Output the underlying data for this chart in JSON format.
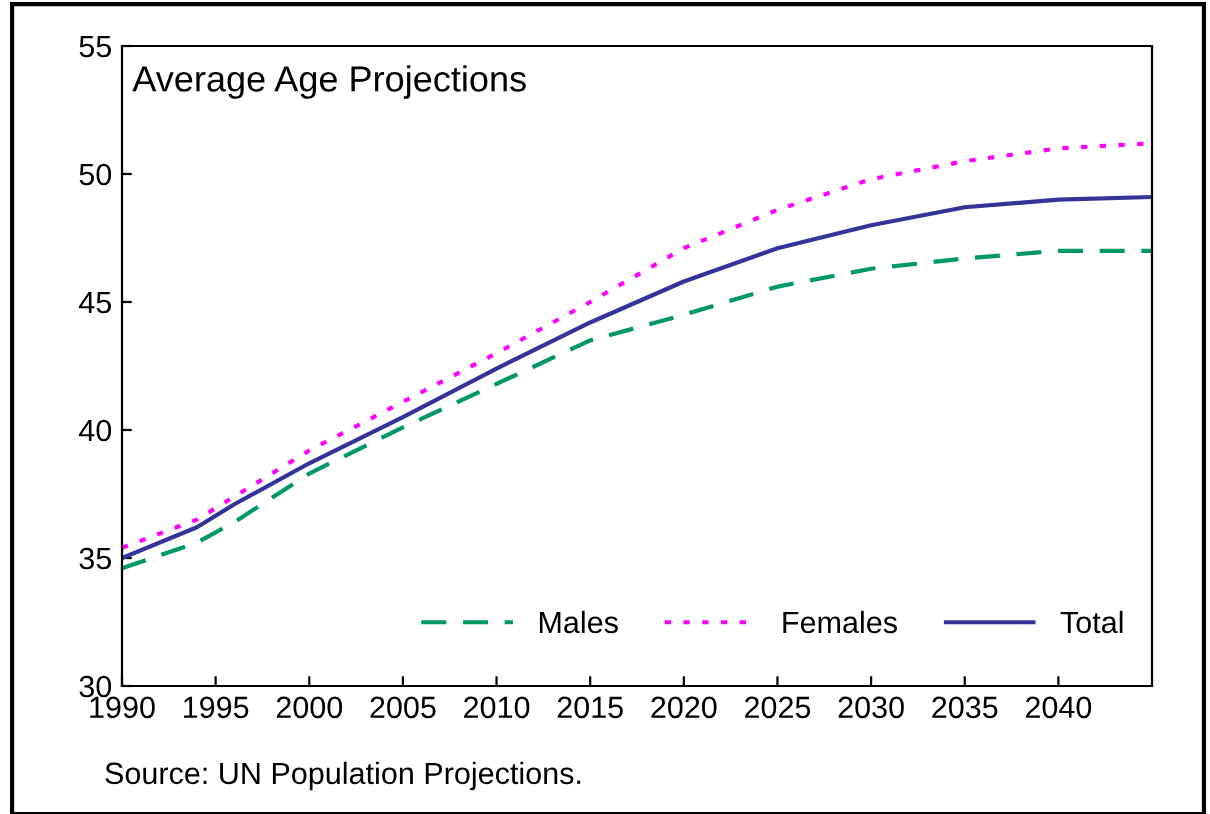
{
  "chart_data": {
    "type": "line",
    "title": "Average Age Projections",
    "annotations": [
      "Source: UN Population Projections."
    ],
    "x": [
      1990,
      1994,
      1996,
      2000,
      2005,
      2010,
      2015,
      2020,
      2025,
      2030,
      2035,
      2040,
      2045
    ],
    "series": [
      {
        "name": "Males",
        "color": "#009966",
        "line_style": "dashed",
        "values": [
          34.6,
          35.6,
          36.4,
          38.3,
          40.1,
          41.8,
          43.5,
          44.5,
          45.6,
          46.3,
          46.7,
          47.0,
          47.0
        ]
      },
      {
        "name": "Females",
        "color": "#ff00ff",
        "line_style": "dotted",
        "values": [
          35.4,
          36.5,
          37.4,
          39.2,
          41.1,
          43.0,
          45.0,
          47.1,
          48.6,
          49.8,
          50.5,
          51.0,
          51.2
        ]
      },
      {
        "name": "Total",
        "color": "#333399",
        "line_style": "solid",
        "values": [
          35.0,
          36.2,
          37.1,
          38.7,
          40.5,
          42.4,
          44.2,
          45.8,
          47.1,
          48.0,
          48.7,
          49.0,
          49.1
        ]
      }
    ],
    "xlim": [
      1990,
      2045
    ],
    "xticks": [
      1990,
      1995,
      2000,
      2005,
      2010,
      2015,
      2020,
      2025,
      2030,
      2035,
      2040
    ],
    "ylim": [
      30,
      55
    ],
    "yticks": [
      30,
      35,
      40,
      45,
      50,
      55
    ],
    "grid": false,
    "legend": "bottom right",
    "marker": "none"
  }
}
